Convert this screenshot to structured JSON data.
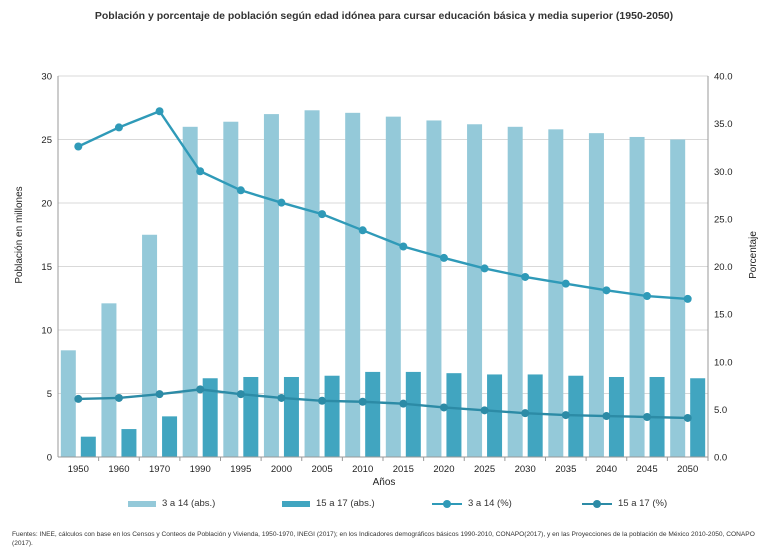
{
  "title": "Población y porcentaje de población según edad idónea para cursar educación básica y media superior (1950-2050)",
  "source": "Fuentes: INEE, cálculos con base en los Censos y Conteos de Población y Vivienda, 1950-1970, INEGI (2017); en los Indicadores demográficos básicos 1990-2010, CONAPO(2017), y en las Proyecciones de la población de México 2010-2050, CONAPO (2017).",
  "chart_data": {
    "type": "bar+line",
    "xlabel": "Años",
    "ylabel": "Población en millones",
    "y2label": "Porcentaje",
    "ylim": [
      0,
      30
    ],
    "y2lim": [
      0,
      40
    ],
    "yticks": [
      "0",
      "5",
      "10",
      "15",
      "20",
      "25",
      "30"
    ],
    "y2ticks": [
      "0.0",
      "5.0",
      "10.0",
      "15.0",
      "20.0",
      "25.0",
      "30.0",
      "35.0",
      "40.0"
    ],
    "grid": "horizontal",
    "legend_position": "bottom",
    "categories": [
      "1950",
      "1960",
      "1970",
      "1990",
      "1995",
      "2000",
      "2005",
      "2010",
      "2015",
      "2020",
      "2025",
      "2030",
      "2035",
      "2040",
      "2045",
      "2050"
    ],
    "series": [
      {
        "name": "3 a 14 (abs.)",
        "type": "bar",
        "axis": "left",
        "color": "#94c9d9",
        "values": [
          8.4,
          12.1,
          17.5,
          26.0,
          26.4,
          27.0,
          27.3,
          27.1,
          26.8,
          26.5,
          26.2,
          26.0,
          25.8,
          25.5,
          25.2,
          25.0
        ]
      },
      {
        "name": "15 a 17 (abs.)",
        "type": "bar",
        "axis": "left",
        "color": "#41a5c0",
        "values": [
          1.6,
          2.2,
          3.2,
          6.2,
          6.3,
          6.3,
          6.4,
          6.7,
          6.7,
          6.6,
          6.5,
          6.5,
          6.4,
          6.3,
          6.3,
          6.2
        ]
      },
      {
        "name": "3 a 14 (%)",
        "type": "line",
        "axis": "right",
        "color": "#2f9ab8",
        "values": [
          32.6,
          34.6,
          36.3,
          30.0,
          28.0,
          26.7,
          25.5,
          23.8,
          22.1,
          20.9,
          19.8,
          18.9,
          18.2,
          17.5,
          16.9,
          16.6
        ]
      },
      {
        "name": "15 a 17 (%)",
        "type": "line",
        "axis": "right",
        "color": "#2c8ba6",
        "values": [
          6.1,
          6.2,
          6.6,
          7.1,
          6.6,
          6.2,
          5.9,
          5.8,
          5.6,
          5.2,
          4.9,
          4.6,
          4.4,
          4.3,
          4.2,
          4.1
        ]
      }
    ]
  }
}
